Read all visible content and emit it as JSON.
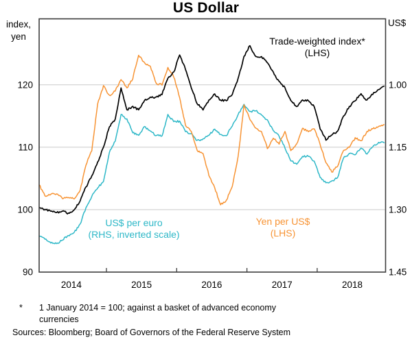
{
  "chart": {
    "title": "US Dollar",
    "left_axis_unit_line1": "index,",
    "left_axis_unit_line2": "yen",
    "right_axis_unit": "US$",
    "series_labels": {
      "twi_line1": "Trade-weighted index*",
      "twi_line2": "(LHS)",
      "euro_line1": "US$ per euro",
      "euro_line2": "(RHS, inverted scale)",
      "yen_line1": "Yen per US$",
      "yen_line2": "(LHS)"
    },
    "footnote_marker": "*",
    "footnote_line1": "1 January 2014 = 100; against a basket of advanced economy",
    "footnote_line2": "currencies",
    "sources": "Sources: Bloomberg; Board of Governors of the Federal Reserve System"
  },
  "chart_data": {
    "type": "line",
    "title": "US Dollar",
    "x_unit": "monthly readings of daily series",
    "x_start": "2014-01",
    "x_end": "2018-12",
    "x_tick_labels": [
      "2014",
      "2015",
      "2016",
      "2017",
      "2018"
    ],
    "grid": true,
    "left_axis": {
      "label": "index, yen",
      "ticks": [
        90,
        100,
        110,
        120
      ],
      "range": [
        90,
        130.5
      ]
    },
    "right_axis": {
      "label": "US$",
      "ticks": [
        1.0,
        1.15,
        1.3,
        1.45
      ],
      "range_top_to_bottom": [
        0.85,
        1.45
      ],
      "inverted": true
    },
    "series": [
      {
        "name": "US$ per euro (RHS, inverted scale)",
        "axis": "right",
        "color": "#2CB7C7",
        "values": [
          1.362,
          1.37,
          1.38,
          1.382,
          1.372,
          1.362,
          1.355,
          1.335,
          1.295,
          1.268,
          1.248,
          1.232,
          1.162,
          1.135,
          1.072,
          1.082,
          1.115,
          1.122,
          1.1,
          1.112,
          1.122,
          1.122,
          1.072,
          1.088,
          1.088,
          1.112,
          1.118,
          1.134,
          1.13,
          1.122,
          1.106,
          1.12,
          1.122,
          1.098,
          1.072,
          1.048,
          1.065,
          1.062,
          1.072,
          1.085,
          1.11,
          1.123,
          1.152,
          1.182,
          1.19,
          1.172,
          1.172,
          1.184,
          1.222,
          1.235,
          1.232,
          1.222,
          1.175,
          1.166,
          1.168,
          1.152,
          1.166,
          1.148,
          1.138,
          1.14
        ]
      },
      {
        "name": "Yen per US$ (LHS)",
        "axis": "left",
        "color": "#F79333",
        "values": [
          104.0,
          102.2,
          102.5,
          102.5,
          101.8,
          102.0,
          101.8,
          103.0,
          107.2,
          109.5,
          117.0,
          119.8,
          118.3,
          119.0,
          120.8,
          119.5,
          121.0,
          124.8,
          123.5,
          123.0,
          120.2,
          120.0,
          122.8,
          121.3,
          118.0,
          113.5,
          112.5,
          109.5,
          109.0,
          105.5,
          103.5,
          100.8,
          101.5,
          103.8,
          108.5,
          116.8,
          114.5,
          113.0,
          112.5,
          109.8,
          111.5,
          110.5,
          112.5,
          109.5,
          110.5,
          113.0,
          112.5,
          113.0,
          110.5,
          107.5,
          106.0,
          107.0,
          109.5,
          110.0,
          111.5,
          111.0,
          112.5,
          113.0,
          113.3,
          113.6
        ]
      },
      {
        "name": "Trade-weighted index (LHS)",
        "axis": "left",
        "color": "#000000",
        "values": [
          100.3,
          100.0,
          99.8,
          99.5,
          99.8,
          99.4,
          100.0,
          101.4,
          103.6,
          105.4,
          107.6,
          110.0,
          113.3,
          114.5,
          119.5,
          116.0,
          116.5,
          116.0,
          117.5,
          118.0,
          118.0,
          118.5,
          121.0,
          122.0,
          124.8,
          122.5,
          119.5,
          117.0,
          116.0,
          117.5,
          118.5,
          117.5,
          117.5,
          118.5,
          121.0,
          124.5,
          126.3,
          124.5,
          124.5,
          123.5,
          122.0,
          120.5,
          119.5,
          117.5,
          116.5,
          117.5,
          117.5,
          116.5,
          113.0,
          111.2,
          112.0,
          112.5,
          115.0,
          116.5,
          117.5,
          118.5,
          117.5,
          118.5,
          119.3,
          119.8
        ]
      }
    ],
    "style": {
      "grid_color": "#C9C9C9",
      "frame_color": "#3D3D3D",
      "twi_color": "#000000",
      "yen_color": "#F79333",
      "euro_color": "#2CB7C7"
    }
  }
}
